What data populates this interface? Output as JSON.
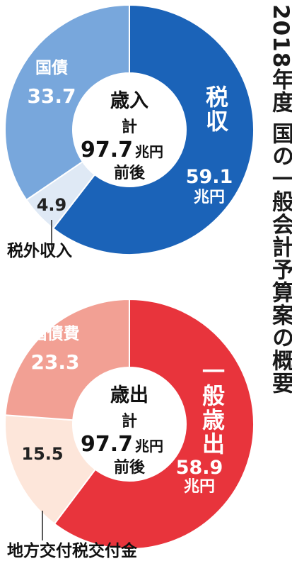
{
  "title": "2018年度 国の一般会計予算案の概要",
  "chart_data": [
    {
      "type": "pie",
      "center_label": [
        "歳入",
        "計",
        "97.7",
        "兆円",
        "前後"
      ],
      "total": 97.7,
      "unit": "兆円",
      "slices": [
        {
          "name": "税収",
          "value": 59.1,
          "value_text": "59.1",
          "unit": "兆円",
          "color": "#1b63b8",
          "text_color": "#ffffff"
        },
        {
          "name": "税外収入",
          "value": 4.9,
          "value_text": "4.9",
          "color": "#dfe9f5",
          "text_color": "#222222"
        },
        {
          "name": "国債",
          "value": 33.7,
          "value_text": "33.7",
          "color": "#78a7dc",
          "text_color": "#ffffff"
        }
      ]
    },
    {
      "type": "pie",
      "center_label": [
        "歳出",
        "計",
        "97.7",
        "兆円",
        "前後"
      ],
      "total": 97.7,
      "unit": "兆円",
      "slices": [
        {
          "name": "一般歳出",
          "value": 58.9,
          "value_text": "58.9",
          "unit": "兆円",
          "color": "#e8343c",
          "text_color": "#ffffff"
        },
        {
          "name": "地方交付税交付金",
          "value": 15.5,
          "value_text": "15.5",
          "color": "#fde6da",
          "text_color": "#222222"
        },
        {
          "name": "国債費",
          "value": 23.3,
          "value_text": "23.3",
          "color": "#f2a094",
          "text_color": "#ffffff"
        }
      ]
    }
  ]
}
